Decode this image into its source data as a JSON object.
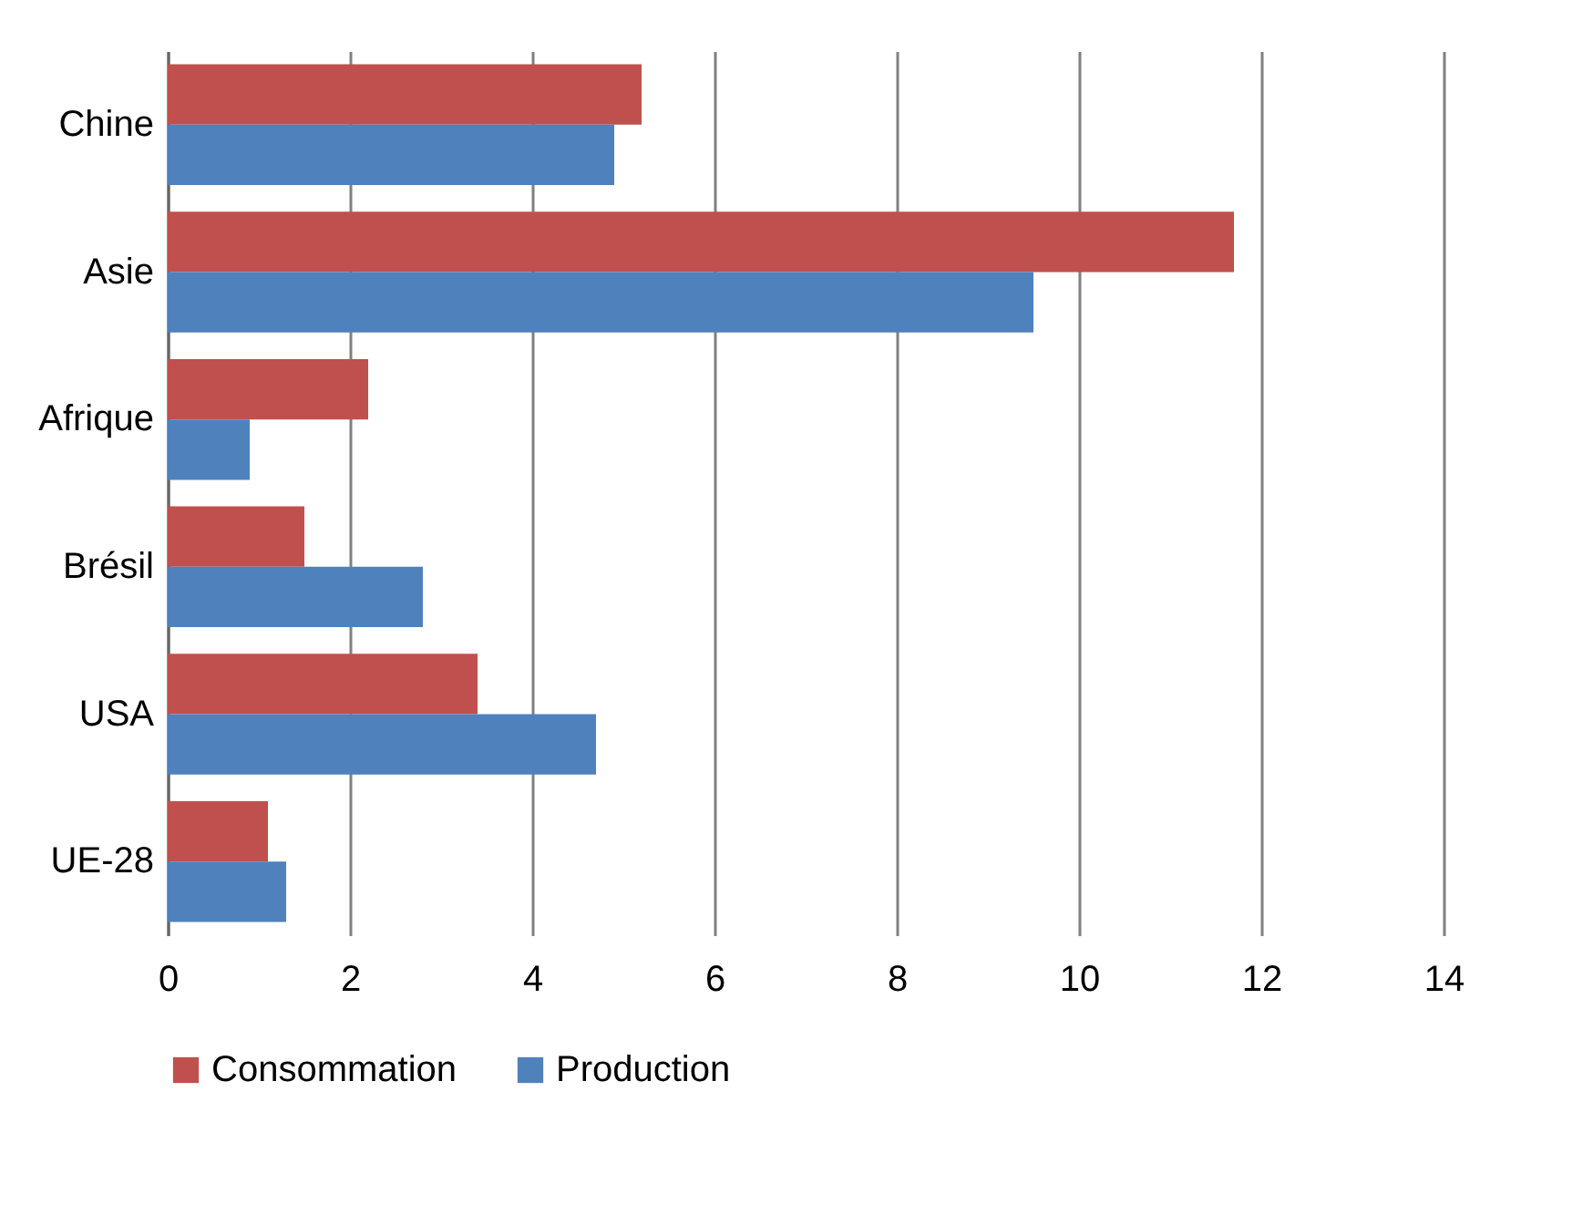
{
  "chart_data": {
    "type": "bar",
    "orientation": "horizontal",
    "categories": [
      "Chine",
      "Asie",
      "Afrique",
      "Brésil",
      "USA",
      "UE-28"
    ],
    "series": [
      {
        "name": "Consommation",
        "color": "#c0504d",
        "values": [
          5.2,
          11.7,
          2.2,
          1.5,
          3.4,
          1.1
        ]
      },
      {
        "name": "Production",
        "color": "#4f81bd",
        "values": [
          4.9,
          9.5,
          0.9,
          2.8,
          4.7,
          1.3
        ]
      }
    ],
    "xlim": [
      0,
      14
    ],
    "xticks": [
      0,
      2,
      4,
      6,
      8,
      10,
      12,
      14
    ],
    "grid": "x",
    "legend": "bottom"
  }
}
